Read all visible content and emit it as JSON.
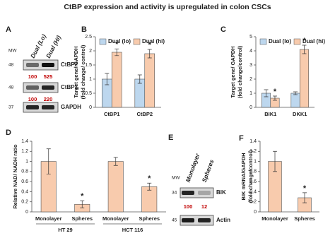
{
  "title": "CtBP expression and activity is upregulated in colon CSCs",
  "blots": [
    {
      "panel": "A",
      "mw_header": "MW",
      "lanes": [
        "Dual (Lo)",
        "Dual (Hi)"
      ],
      "rows": [
        {
          "mw": "48",
          "name": "CtBP2",
          "quant": [
            "100",
            "525"
          ]
        },
        {
          "mw": "48",
          "name": "CtBP1",
          "quant": [
            "100",
            "220"
          ]
        },
        {
          "mw": "37",
          "name": "GAPDH"
        }
      ]
    },
    {
      "panel": "E",
      "mw_header": "MW",
      "lanes": [
        "Monolayer",
        "Spheres"
      ],
      "rows": [
        {
          "mw": "34",
          "name": "BIK",
          "quant": [
            "100",
            "12"
          ]
        },
        {
          "mw": "45",
          "name": "Actin"
        }
      ]
    }
  ],
  "chart_data": [
    {
      "type": "bar",
      "panel": "B",
      "ylabel": [
        "Target gene/ GAPDH",
        "(fold change/ control)"
      ],
      "categories": [
        "CtBP1",
        "CtBP2"
      ],
      "series": [
        {
          "name": "Dual (lo)",
          "color": "#bdd7ee",
          "values": [
            1.0,
            1.0
          ],
          "errors": [
            0.2,
            0.15
          ]
        },
        {
          "name": "Dual (hi)",
          "color": "#f8cbad",
          "values": [
            1.95,
            1.9
          ],
          "errors": [
            0.12,
            0.15
          ],
          "annotations": [
            "*",
            "*"
          ]
        }
      ],
      "ylim": [
        0,
        2.5
      ],
      "yticks": [
        0,
        0.5,
        1,
        1.5,
        2,
        2.5
      ],
      "legend": "top"
    },
    {
      "type": "bar",
      "panel": "C",
      "ylabel": [
        "Target gene/ GAPDH",
        "(fold change/control)"
      ],
      "categories": [
        "BIK1",
        "DKK1"
      ],
      "series": [
        {
          "name": "Dual (lo)",
          "color": "#bdd7ee",
          "values": [
            1.0,
            1.0
          ],
          "errors": [
            0.25,
            0.1
          ]
        },
        {
          "name": "Dual (hi)",
          "color": "#f8cbad",
          "values": [
            0.65,
            4.1
          ],
          "errors": [
            0.15,
            0.3
          ],
          "annotations": [
            "*",
            "*"
          ]
        }
      ],
      "ylim": [
        0,
        5
      ],
      "yticks": [
        0,
        1,
        2,
        3,
        4,
        5
      ],
      "legend": "top"
    },
    {
      "type": "bar",
      "panel": "D",
      "ylabel": [
        "Relative NAD/ NADH ratio"
      ],
      "categories": [
        "Monolayer",
        "Spheres",
        "Monolayer",
        "Spheres"
      ],
      "group_labels": [
        "HT 29",
        "HCT 116"
      ],
      "series": [
        {
          "color": "#f8cbad",
          "values": [
            1.0,
            0.15,
            1.0,
            0.5
          ],
          "errors": [
            0.25,
            0.07,
            0.08,
            0.07
          ],
          "annotations": [
            null,
            "*",
            null,
            "*"
          ]
        }
      ],
      "ylim": [
        0,
        1.4
      ],
      "yticks": [
        0,
        0.2,
        0.4,
        0.6,
        0.8,
        1,
        1.2,
        1.4
      ]
    },
    {
      "type": "bar",
      "panel": "F",
      "ylabel": [
        "BIK mRNA/GAPDH",
        "(fold change/control)"
      ],
      "categories": [
        "Monolayer",
        "Spheres"
      ],
      "series": [
        {
          "color": "#f8cbad",
          "values": [
            1.0,
            0.28
          ],
          "errors": [
            0.2,
            0.1
          ],
          "annotations": [
            null,
            "*"
          ]
        }
      ],
      "ylim": [
        0,
        1.4
      ],
      "yticks": [
        0,
        0.2,
        0.4,
        0.6,
        0.8,
        1,
        1.2,
        1.4
      ]
    }
  ]
}
